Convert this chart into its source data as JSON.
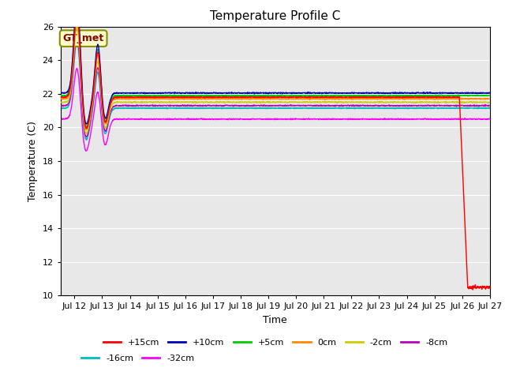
{
  "title": "Temperature Profile C",
  "xlabel": "Time",
  "ylabel": "Temperature (C)",
  "ylim": [
    10,
    26
  ],
  "yticks": [
    10,
    12,
    14,
    16,
    18,
    20,
    22,
    24,
    26
  ],
  "xlim": [
    11.5,
    27
  ],
  "x_tick_positions": [
    12,
    13,
    14,
    15,
    16,
    17,
    18,
    19,
    20,
    21,
    22,
    23,
    24,
    25,
    26,
    27
  ],
  "annotation_text": "GT_met",
  "annotation_color": "#8B0000",
  "annotation_bg": "#FFFFCC",
  "annotation_edge": "#8B8B00",
  "background_color": "#E8E8E8",
  "grid_color": "#FFFFFF",
  "title_fontsize": 11,
  "series_params": [
    {
      "label": "+15cm",
      "color": "#FF0000",
      "steady": 21.8,
      "drop_day": 25.9,
      "drop_val": 10.5
    },
    {
      "label": "+10cm",
      "color": "#0000BB",
      "steady": 22.05
    },
    {
      "label": "+5cm",
      "color": "#00CC00",
      "steady": 21.9
    },
    {
      "label": "0cm",
      "color": "#FF8800",
      "steady": 21.7
    },
    {
      "label": "-2cm",
      "color": "#CCCC00",
      "steady": 21.5
    },
    {
      "label": "-8cm",
      "color": "#BB00BB",
      "steady": 21.3
    },
    {
      "label": "-16cm",
      "color": "#00BBBB",
      "steady": 21.15
    },
    {
      "label": "-32cm",
      "color": "#FF00FF",
      "steady": 20.5
    }
  ],
  "legend_ncol_row1": 6,
  "legend_ncol_row2": 2
}
